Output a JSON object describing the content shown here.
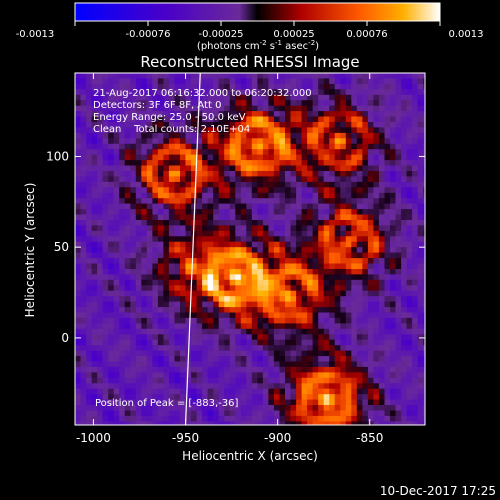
{
  "colorbar": {
    "ticks": [
      "-0.0013",
      "-0.00076",
      "-0.00025",
      "0.00025",
      "0.00076",
      "0.0013"
    ],
    "units": "(photons cm",
    "units_exp1": "-2",
    "units_mid": " s",
    "units_exp2": "-1",
    "units_end": " asec",
    "units_exp3": "-2",
    "units_close": ")"
  },
  "annotations": {
    "line1": "21-Aug-2017 06:16:32.000 to 06:20:32.000",
    "line2": "Detectors: 3F 6F 8F, Att 0",
    "line3": "Energy Range: 25.0 - 50.0 keV",
    "line4": "Clean    Total counts: 2.10E+04",
    "peak": "Position of Peak = [-883,-36]"
  },
  "footer": {
    "timestamp": "10-Dec-2017 17:25"
  },
  "chart_data": {
    "type": "heatmap",
    "title": "Reconstructed RHESSI Image",
    "xlabel": "Heliocentric X (arcsec)",
    "ylabel": "Heliocentric Y (arcsec)",
    "xlim": [
      -1010,
      -820
    ],
    "ylim": [
      -48,
      146
    ],
    "x_ticks": [
      -1000,
      -950,
      -900,
      -850
    ],
    "y_ticks": [
      0,
      50,
      100
    ],
    "x_tick_labels": [
      "-1000",
      "-950",
      "-900",
      "-850"
    ],
    "y_tick_labels": [
      "0",
      "50",
      "100"
    ],
    "colorbar_range": [
      -0.0013,
      0.0013
    ],
    "bright_sources": [
      {
        "x": -958,
        "y": 92,
        "level": 0.8
      },
      {
        "x": -912,
        "y": 108,
        "level": 0.95
      },
      {
        "x": -868,
        "y": 110,
        "level": 0.7
      },
      {
        "x": -925,
        "y": 35,
        "level": 0.9
      },
      {
        "x": -895,
        "y": 25,
        "level": 0.75
      },
      {
        "x": -862,
        "y": 55,
        "level": 0.75
      },
      {
        "x": -875,
        "y": -32,
        "level": 1.0
      },
      {
        "x": -950,
        "y": 40,
        "level": 0.45
      }
    ],
    "limb_x": [
      -942,
      -950
    ],
    "limb_y": [
      146,
      -48
    ]
  }
}
